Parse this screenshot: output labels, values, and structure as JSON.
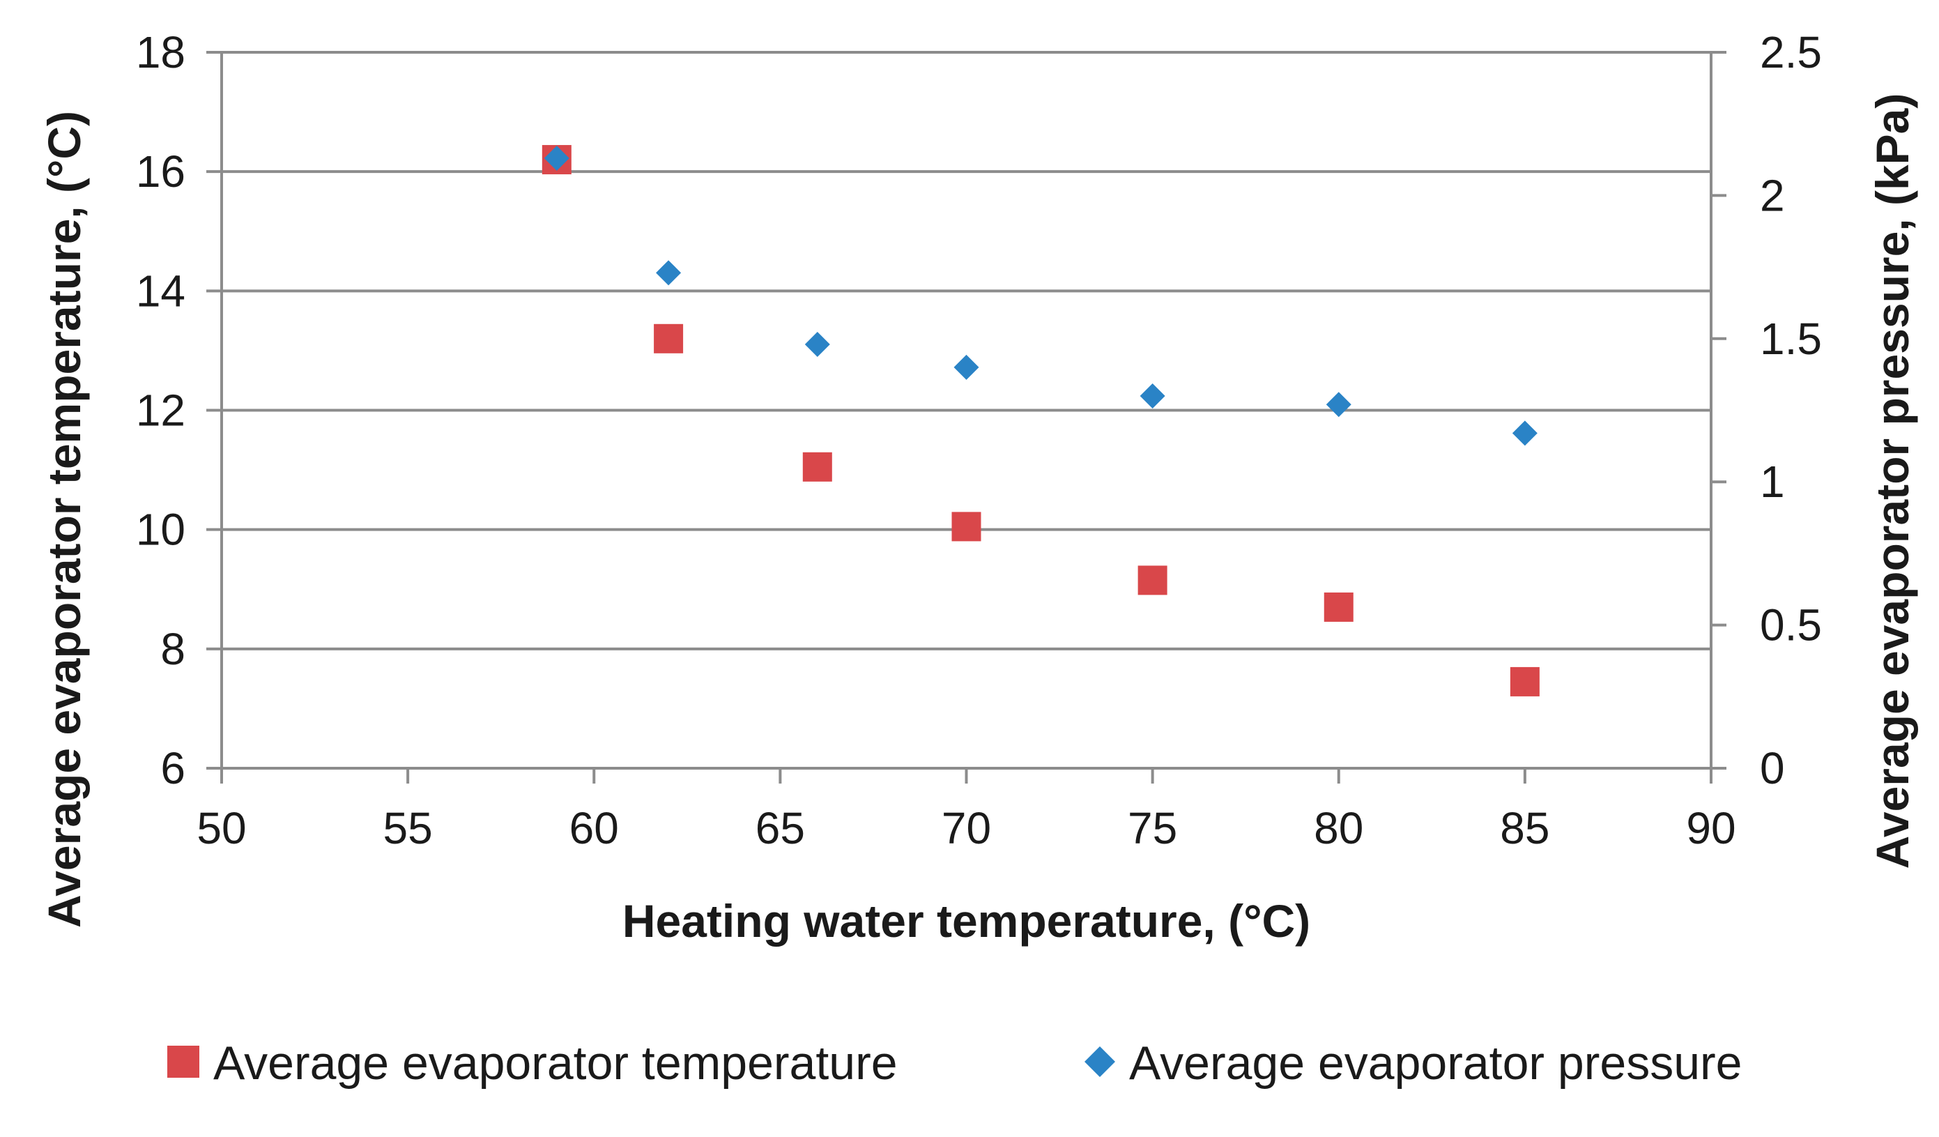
{
  "chart_data": {
    "type": "scatter",
    "title": "",
    "xlabel": "Heating water temperature, (°C)",
    "ylabel_left": "Average evaporator temperature, (°C)",
    "ylabel_right": "Average evaporator pressure, (kPa)",
    "xlim": [
      50,
      90
    ],
    "xticks": [
      "50",
      "55",
      "60",
      "65",
      "70",
      "75",
      "80",
      "85",
      "90"
    ],
    "ylim_left": [
      6,
      18
    ],
    "yticks_left": [
      "6",
      "8",
      "10",
      "12",
      "14",
      "16",
      "18"
    ],
    "ylim_right": [
      0,
      2.5
    ],
    "yticks_right": [
      "0",
      "0.5",
      "1",
      "1.5",
      "2",
      "2.5"
    ],
    "grid": true,
    "legend_position": "bottom",
    "series": [
      {
        "name": "Average evaporator temperature",
        "axis": "left",
        "marker": "square",
        "color": "#d9474a",
        "x": [
          59,
          62,
          66,
          70,
          75,
          80,
          85
        ],
        "y": [
          16.2,
          13.2,
          11.05,
          10.05,
          9.15,
          8.7,
          7.45
        ]
      },
      {
        "name": "Average evaporator pressure",
        "axis": "right",
        "marker": "diamond",
        "color": "#2a83c6",
        "x": [
          59,
          62,
          66,
          70,
          75,
          80,
          85
        ],
        "y": [
          2.13,
          1.73,
          1.48,
          1.4,
          1.3,
          1.27,
          1.17
        ]
      }
    ]
  }
}
